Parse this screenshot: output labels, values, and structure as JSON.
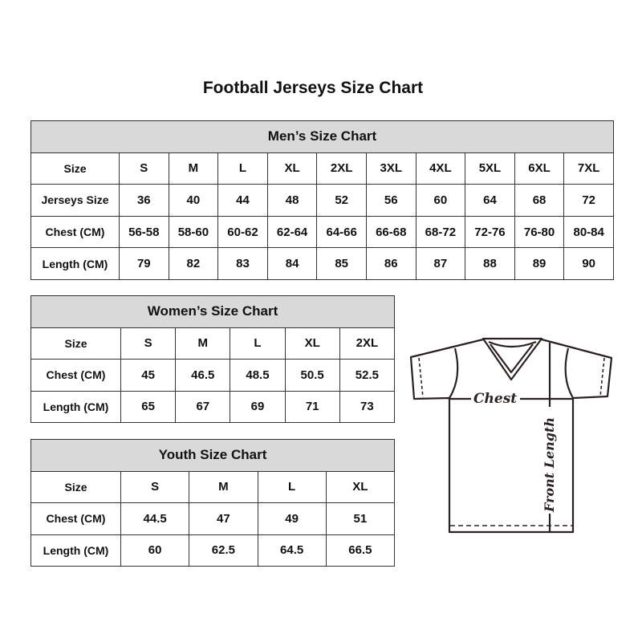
{
  "title": "Football Jerseys Size Chart",
  "men": {
    "title": "Men’s Size Chart",
    "rows": [
      {
        "label": "Size",
        "values": [
          "S",
          "M",
          "L",
          "XL",
          "2XL",
          "3XL",
          "4XL",
          "5XL",
          "6XL",
          "7XL"
        ]
      },
      {
        "label": "Jerseys Size",
        "values": [
          "36",
          "40",
          "44",
          "48",
          "52",
          "56",
          "60",
          "64",
          "68",
          "72"
        ]
      },
      {
        "label": "Chest (CM)",
        "values": [
          "56-58",
          "58-60",
          "60-62",
          "62-64",
          "64-66",
          "66-68",
          "68-72",
          "72-76",
          "76-80",
          "80-84"
        ]
      },
      {
        "label": "Length (CM)",
        "values": [
          "79",
          "82",
          "83",
          "84",
          "85",
          "86",
          "87",
          "88",
          "89",
          "90"
        ]
      }
    ]
  },
  "women": {
    "title": "Women’s Size Chart",
    "rows": [
      {
        "label": "Size",
        "values": [
          "S",
          "M",
          "L",
          "XL",
          "2XL"
        ]
      },
      {
        "label": "Chest (CM)",
        "values": [
          "45",
          "46.5",
          "48.5",
          "50.5",
          "52.5"
        ]
      },
      {
        "label": "Length (CM)",
        "values": [
          "65",
          "67",
          "69",
          "71",
          "73"
        ]
      }
    ]
  },
  "youth": {
    "title": "Youth Size Chart",
    "rows": [
      {
        "label": "Size",
        "values": [
          "S",
          "M",
          "L",
          "XL"
        ]
      },
      {
        "label": "Chest (CM)",
        "values": [
          "44.5",
          "47",
          "49",
          "51"
        ]
      },
      {
        "label": "Length (CM)",
        "values": [
          "60",
          "62.5",
          "64.5",
          "66.5"
        ]
      }
    ]
  },
  "diagram": {
    "chest_label": "Chest",
    "length_label": "Front Length"
  }
}
